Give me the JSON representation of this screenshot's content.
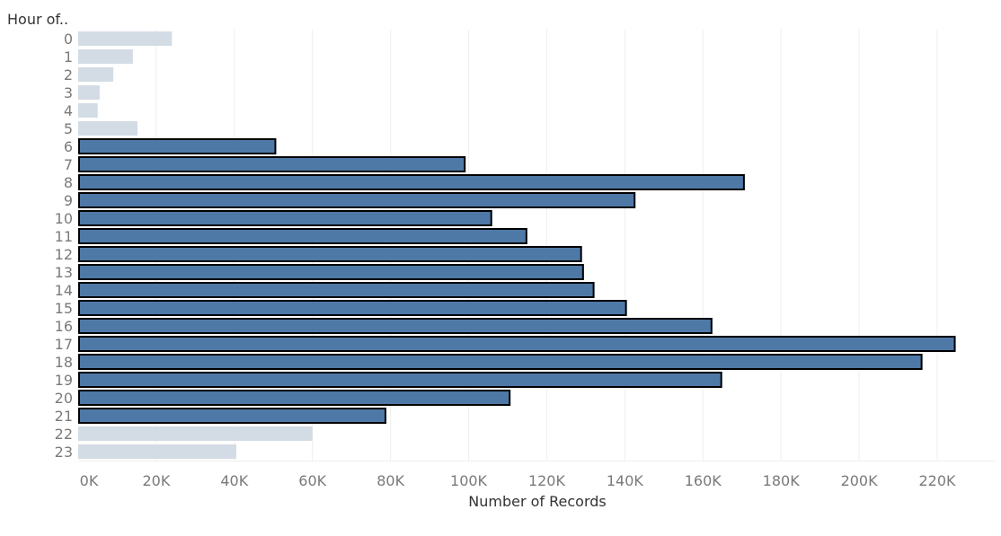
{
  "chart_data": {
    "type": "bar",
    "orientation": "horizontal",
    "row_header": "Hour of..",
    "xlabel": "Number of Records",
    "xlim": [
      0,
      230000
    ],
    "x_ticks": [
      0,
      20000,
      40000,
      60000,
      80000,
      100000,
      120000,
      140000,
      160000,
      180000,
      200000,
      220000
    ],
    "x_tick_labels": [
      "0K",
      "20K",
      "40K",
      "60K",
      "80K",
      "100K",
      "120K",
      "140K",
      "160K",
      "180K",
      "200K",
      "220K"
    ],
    "categories": [
      "0",
      "1",
      "2",
      "3",
      "4",
      "5",
      "6",
      "7",
      "8",
      "9",
      "10",
      "11",
      "12",
      "13",
      "14",
      "15",
      "16",
      "17",
      "18",
      "19",
      "20",
      "21",
      "22",
      "23"
    ],
    "values": [
      24000,
      14000,
      9000,
      5500,
      5000,
      15200,
      50500,
      99000,
      170500,
      142500,
      105800,
      114800,
      128800,
      129300,
      132000,
      140300,
      162200,
      224500,
      216000,
      164700,
      110500,
      78700,
      60000,
      40500
    ],
    "highlighted": [
      false,
      false,
      false,
      false,
      false,
      false,
      true,
      true,
      true,
      true,
      true,
      true,
      true,
      true,
      true,
      true,
      true,
      true,
      true,
      true,
      true,
      true,
      false,
      false
    ],
    "grid": true,
    "legend": "none",
    "colors": {
      "highlight_fill": "#4e79a7",
      "highlight_stroke": "#000000",
      "muted_fill": "#d3dce4",
      "gridline": "#efefef",
      "tick_text": "#7a7a7a",
      "title_text": "#333333"
    }
  }
}
